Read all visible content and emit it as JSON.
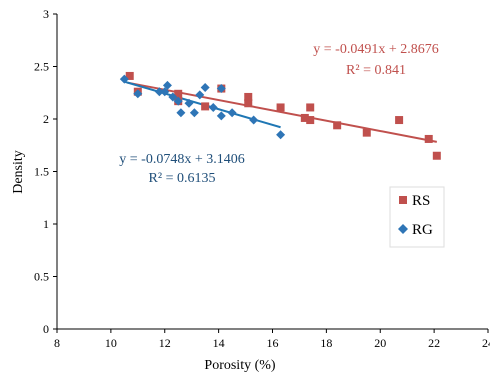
{
  "chart_data": {
    "type": "scatter",
    "xlabel": "Porosity (%)",
    "ylabel": "Density",
    "xlim": [
      8,
      24
    ],
    "ylim": [
      0,
      3
    ],
    "xticks": [
      8,
      10,
      12,
      14,
      16,
      18,
      20,
      22,
      24
    ],
    "yticks": [
      0,
      0.5,
      1,
      1.5,
      2,
      2.5,
      3
    ],
    "xtick_labels": [
      "8",
      "10",
      "12",
      "14",
      "16",
      "18",
      "20",
      "22",
      "24"
    ],
    "ytick_labels": [
      "0",
      "0.5",
      "1",
      "1.5",
      "2",
      "2.5",
      "3"
    ],
    "grid": false,
    "legend_position": "right",
    "series": [
      {
        "name": "RS",
        "marker": "square",
        "color": "#c0504d",
        "points": [
          [
            10.7,
            2.41
          ],
          [
            11.0,
            2.26
          ],
          [
            12.5,
            2.24
          ],
          [
            12.5,
            2.17
          ],
          [
            13.5,
            2.12
          ],
          [
            14.1,
            2.29
          ],
          [
            15.1,
            2.21
          ],
          [
            15.1,
            2.15
          ],
          [
            16.3,
            2.11
          ],
          [
            17.2,
            2.01
          ],
          [
            17.4,
            1.99
          ],
          [
            17.4,
            2.11
          ],
          [
            18.4,
            1.94
          ],
          [
            19.5,
            1.87
          ],
          [
            20.7,
            1.99
          ],
          [
            21.8,
            1.81
          ],
          [
            22.1,
            1.65
          ]
        ],
        "trendline": {
          "slope": -0.0491,
          "intercept": 2.8676,
          "x_range": [
            10.6,
            22.1
          ]
        },
        "equation": "y = -0.0491x + 2.8676",
        "r_squared": "R² = 0.841"
      },
      {
        "name": "RG",
        "marker": "diamond",
        "color": "#2e75b6",
        "points": [
          [
            10.5,
            2.38
          ],
          [
            11.0,
            2.24
          ],
          [
            11.8,
            2.26
          ],
          [
            12.0,
            2.26
          ],
          [
            12.1,
            2.32
          ],
          [
            12.3,
            2.21
          ],
          [
            12.5,
            2.17
          ],
          [
            12.6,
            2.06
          ],
          [
            12.9,
            2.15
          ],
          [
            13.1,
            2.06
          ],
          [
            13.3,
            2.23
          ],
          [
            13.5,
            2.3
          ],
          [
            13.8,
            2.11
          ],
          [
            14.1,
            2.29
          ],
          [
            14.1,
            2.03
          ],
          [
            14.5,
            2.06
          ],
          [
            15.3,
            1.99
          ],
          [
            16.3,
            1.85
          ]
        ],
        "trendline": {
          "slope": -0.0748,
          "intercept": 3.1406,
          "x_range": [
            10.5,
            16.3
          ]
        },
        "equation": "y = -0.0748x + 3.1406",
        "r_squared": "R² = 0.6135"
      }
    ]
  }
}
